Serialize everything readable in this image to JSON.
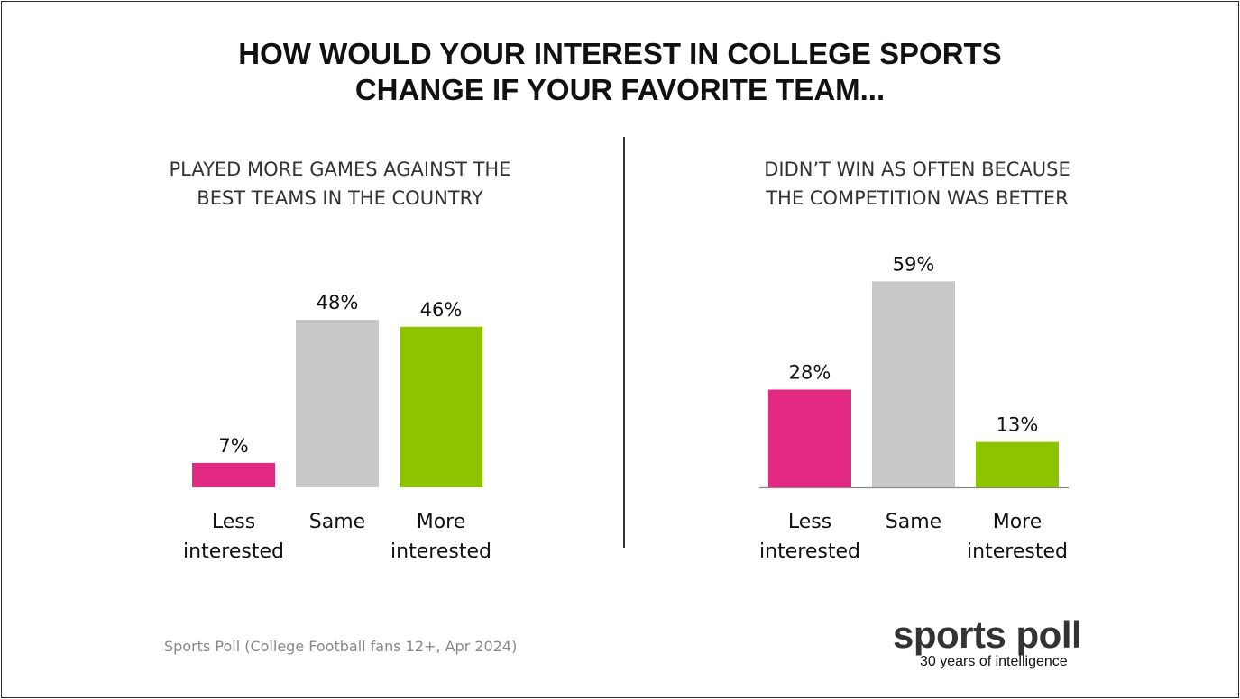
{
  "title": {
    "line1": "HOW WOULD YOUR INTEREST IN COLLEGE SPORTS",
    "line2": "CHANGE IF YOUR FAVORITE TEAM..."
  },
  "left_panel": {
    "subtitle_line1": "PLAYED MORE GAMES AGAINST THE",
    "subtitle_line2": "BEST TEAMS IN THE COUNTRY"
  },
  "right_panel": {
    "subtitle_line1": "DIDN’T WIN AS OFTEN BECAUSE",
    "subtitle_line2": "THE COMPETITION WAS BETTER"
  },
  "source": "Sports Poll (College Football fans 12+, Apr 2024)",
  "logo": {
    "name": "sports poll",
    "tagline": "30 years of intelligence"
  },
  "colors": {
    "less": "#e32a82",
    "same": "#c8c8c8",
    "more": "#8cc400"
  },
  "chart_data": [
    {
      "type": "bar",
      "title": "PLAYED MORE GAMES AGAINST THE BEST TEAMS IN THE COUNTRY",
      "categories": [
        "Less interested",
        "Same",
        "More interested"
      ],
      "category_lines": [
        [
          "Less",
          "interested"
        ],
        [
          "Same"
        ],
        [
          "More",
          "interested"
        ]
      ],
      "values": [
        7,
        48,
        46
      ],
      "labels": [
        "7%",
        "48%",
        "46%"
      ],
      "colors": [
        "#e32a82",
        "#c8c8c8",
        "#8cc400"
      ],
      "unit": "%",
      "ylim": [
        0,
        60
      ],
      "grid": false,
      "axis_line": false
    },
    {
      "type": "bar",
      "title": "DIDN’T WIN AS OFTEN BECAUSE THE COMPETITION WAS BETTER",
      "categories": [
        "Less interested",
        "Same",
        "More interested"
      ],
      "category_lines": [
        [
          "Less",
          "interested"
        ],
        [
          "Same"
        ],
        [
          "More",
          "interested"
        ]
      ],
      "values": [
        28,
        59,
        13
      ],
      "labels": [
        "28%",
        "59%",
        "13%"
      ],
      "colors": [
        "#e32a82",
        "#c8c8c8",
        "#8cc400"
      ],
      "unit": "%",
      "ylim": [
        0,
        60
      ],
      "grid": false,
      "axis_line": true
    }
  ]
}
